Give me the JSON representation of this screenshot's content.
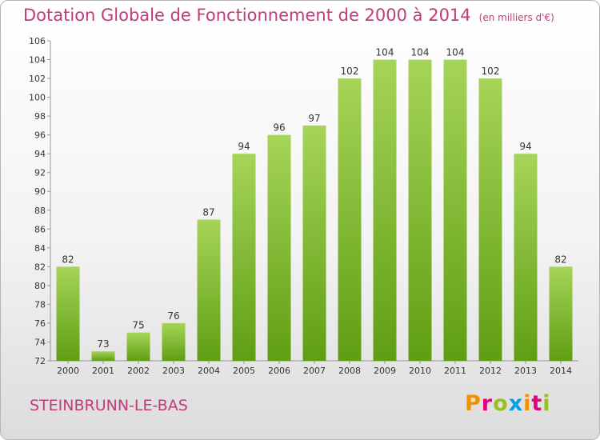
{
  "header": {
    "title": "Dotation Globale de Fonctionnement de 2000 à 2014",
    "unit": "(en milliers d'€)"
  },
  "commune": "STEINBRUNN-LE-BAS",
  "logo": {
    "text": "Proxiti",
    "colors": [
      "#f39200",
      "#e5007d",
      "#95c11f",
      "#009fe3",
      "#f39200",
      "#e5007d",
      "#95c11f"
    ]
  },
  "colors": {
    "bar_light": "#a6d458",
    "bar_dark": "#5f9e14",
    "title": "#c23a7a"
  },
  "chart_data": {
    "type": "bar",
    "categories": [
      "2000",
      "2001",
      "2002",
      "2003",
      "2004",
      "2005",
      "2006",
      "2007",
      "2008",
      "2009",
      "2010",
      "2011",
      "2012",
      "2013",
      "2014"
    ],
    "values": [
      82,
      73,
      75,
      76,
      87,
      94,
      96,
      97,
      102,
      104,
      104,
      104,
      102,
      94,
      82
    ],
    "ylim": [
      72,
      106
    ],
    "yticks": [
      72,
      74,
      76,
      78,
      80,
      82,
      84,
      86,
      88,
      90,
      92,
      94,
      96,
      98,
      100,
      102,
      104,
      106
    ],
    "grid": false
  }
}
